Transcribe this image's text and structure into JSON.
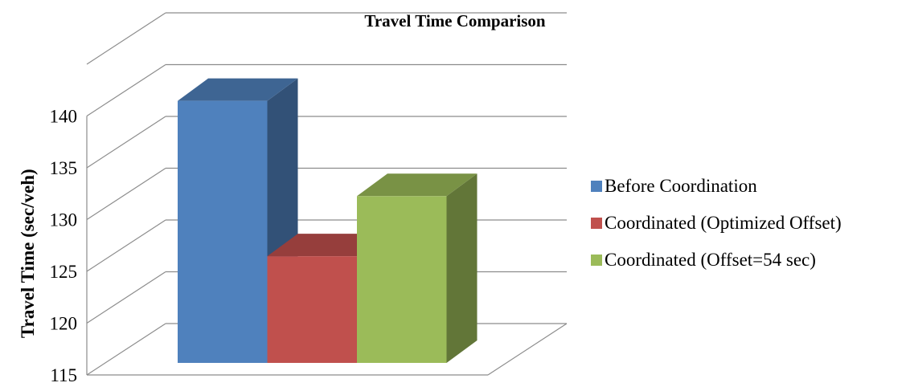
{
  "chart_data": {
    "type": "bar",
    "title": "Travel Time Comparison",
    "ylabel": "Travel Time (sec/veh)",
    "xlabel": "",
    "ylim": [
      115,
      140
    ],
    "y_ticks": [
      "115",
      "120",
      "125",
      "130",
      "135",
      "140"
    ],
    "grid": true,
    "legend_position": "right",
    "three_d": true,
    "series": [
      {
        "name": "Before Coordination",
        "values": [
          140.3
        ],
        "color": "#4F81BD"
      },
      {
        "name": "Coordinated (Optimized Offset)",
        "values": [
          125.3
        ],
        "color": "#C0504D"
      },
      {
        "name": "Coordinated (Offset=54 sec)",
        "values": [
          131.1
        ],
        "color": "#9BBB59"
      }
    ]
  }
}
